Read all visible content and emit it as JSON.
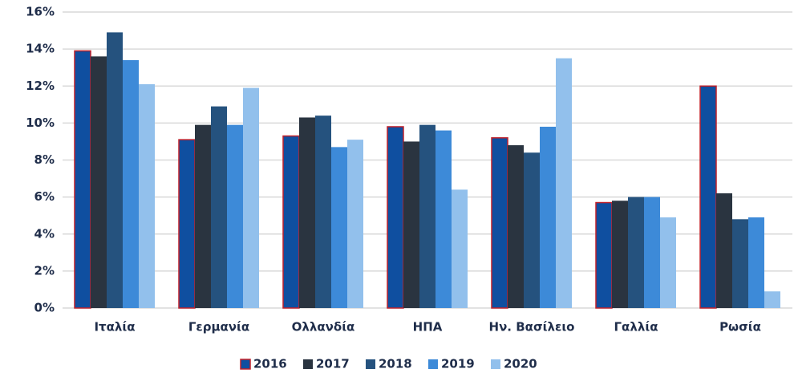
{
  "chart_data": {
    "type": "bar",
    "categories": [
      "Ιταλία",
      "Γερμανία",
      "Ολλανδία",
      "ΗΠΑ",
      "Ην. Βασίλειο",
      "Γαλλία",
      "Ρωσία"
    ],
    "series": [
      {
        "name": "2016",
        "color": "#0f4fa0",
        "edgecolor": "#c0202a",
        "values": [
          13.9,
          9.1,
          9.3,
          9.8,
          9.2,
          5.7,
          12.0
        ]
      },
      {
        "name": "2017",
        "color": "#2a3440",
        "values": [
          13.6,
          9.9,
          10.3,
          9.0,
          8.8,
          5.8,
          6.2
        ]
      },
      {
        "name": "2018",
        "color": "#25527e",
        "values": [
          14.9,
          10.9,
          10.4,
          9.9,
          8.4,
          6.0,
          4.8
        ]
      },
      {
        "name": "2019",
        "color": "#3d8ad8",
        "values": [
          13.4,
          9.9,
          8.7,
          9.6,
          9.8,
          6.0,
          4.9
        ]
      },
      {
        "name": "2020",
        "color": "#92c0ec",
        "values": [
          12.1,
          11.9,
          9.1,
          6.4,
          13.5,
          4.9,
          0.9
        ]
      }
    ],
    "ylim": [
      0,
      16
    ],
    "yticks": [
      {
        "value": 0,
        "label": "0%"
      },
      {
        "value": 2,
        "label": "2%"
      },
      {
        "value": 4,
        "label": "4%"
      },
      {
        "value": 6,
        "label": "6%"
      },
      {
        "value": 8,
        "label": "8%"
      },
      {
        "value": 10,
        "label": "10%"
      },
      {
        "value": 12,
        "label": "12%"
      },
      {
        "value": 14,
        "label": "14%"
      },
      {
        "value": 16,
        "label": "16%"
      }
    ],
    "grid": true,
    "legend": "bottom"
  }
}
